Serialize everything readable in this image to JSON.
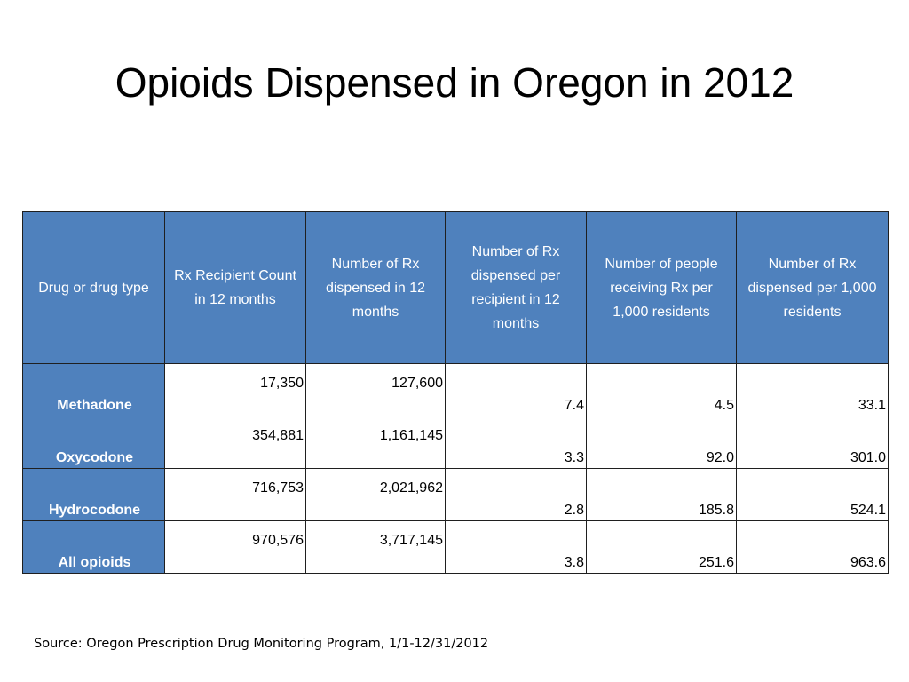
{
  "slide": {
    "title": "Opioids Dispensed in Oregon in 2012",
    "source": "Source: Oregon Prescription Drug Monitoring Program, 1/1-12/31/2012"
  },
  "table": {
    "headers": [
      "Drug or drug type",
      "Rx Recipient Count in 12 months",
      "Number of Rx dispensed in 12 months",
      "Number of Rx dispensed per recipient in 12 months",
      "Number of people receiving Rx per 1,000 residents",
      "Number of Rx dispensed per 1,000 residents"
    ],
    "rows": [
      [
        "Methadone",
        "17,350",
        "127,600",
        "7.4",
        "4.5",
        "33.1"
      ],
      [
        "Oxycodone",
        "354,881",
        "1,161,145",
        "3.3",
        "92.0",
        "301.0"
      ],
      [
        "Hydrocodone",
        "716,753",
        "2,021,962",
        "2.8",
        "185.8",
        "524.1"
      ],
      [
        "All opioids",
        "970,576",
        "3,717,145",
        "3.8",
        "251.6",
        "963.6"
      ]
    ]
  },
  "colors": {
    "header_fill": "#4f81bd",
    "header_text": "#ffffff",
    "border": "#1f1f1f"
  }
}
